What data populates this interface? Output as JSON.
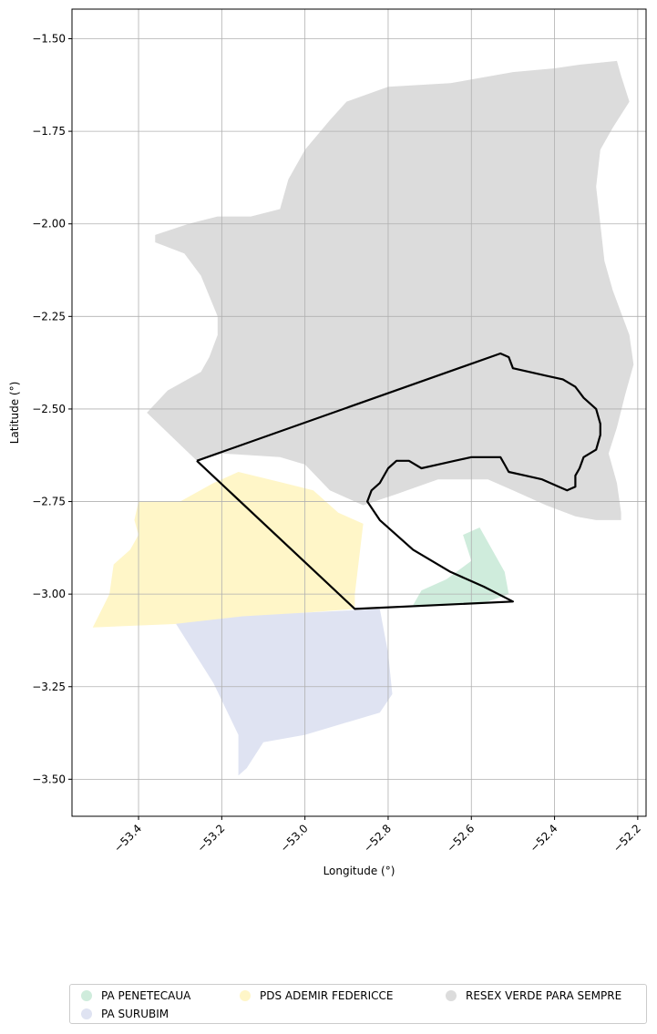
{
  "chart_data": {
    "type": "map",
    "xlabel": "Longitude (°)",
    "ylabel": "Latitude (°)",
    "xlim": [
      -53.56,
      -52.18
    ],
    "ylim": [
      -3.6,
      -1.42
    ],
    "xticks": [
      -53.4,
      -53.2,
      -53.0,
      -52.8,
      -52.6,
      -52.4,
      -52.2
    ],
    "xtick_labels": [
      "−53.4",
      "−53.2",
      "−53.0",
      "−52.8",
      "−52.6",
      "−52.4",
      "−52.2"
    ],
    "yticks": [
      -1.5,
      -1.75,
      -2.0,
      -2.25,
      -2.5,
      -2.75,
      -3.0,
      -3.25,
      -3.5
    ],
    "ytick_labels": [
      "−1.50",
      "−1.75",
      "−2.00",
      "−2.25",
      "−2.50",
      "−2.75",
      "−3.00",
      "−3.25",
      "−3.50"
    ],
    "grid": true,
    "legend_position": "bottom",
    "regions": [
      {
        "name": "RESEX VERDE PARA SEMPRE",
        "color": "#dcdcdc",
        "polygon": [
          [
            -53.38,
            -2.51
          ],
          [
            -53.33,
            -2.45
          ],
          [
            -53.25,
            -2.4
          ],
          [
            -53.23,
            -2.36
          ],
          [
            -53.21,
            -2.3
          ],
          [
            -53.21,
            -2.25
          ],
          [
            -53.25,
            -2.14
          ],
          [
            -53.29,
            -2.08
          ],
          [
            -53.36,
            -2.05
          ],
          [
            -53.36,
            -2.03
          ],
          [
            -53.28,
            -2.0
          ],
          [
            -53.21,
            -1.98
          ],
          [
            -53.13,
            -1.98
          ],
          [
            -53.06,
            -1.96
          ],
          [
            -53.04,
            -1.88
          ],
          [
            -53.0,
            -1.8
          ],
          [
            -52.94,
            -1.72
          ],
          [
            -52.9,
            -1.67
          ],
          [
            -52.8,
            -1.63
          ],
          [
            -52.65,
            -1.62
          ],
          [
            -52.5,
            -1.59
          ],
          [
            -52.4,
            -1.58
          ],
          [
            -52.34,
            -1.57
          ],
          [
            -52.25,
            -1.56
          ],
          [
            -52.24,
            -1.6
          ],
          [
            -52.22,
            -1.67
          ],
          [
            -52.26,
            -1.74
          ],
          [
            -52.29,
            -1.8
          ],
          [
            -52.3,
            -1.9
          ],
          [
            -52.29,
            -2.0
          ],
          [
            -52.28,
            -2.1
          ],
          [
            -52.26,
            -2.18
          ],
          [
            -52.22,
            -2.3
          ],
          [
            -52.21,
            -2.38
          ],
          [
            -52.23,
            -2.46
          ],
          [
            -52.25,
            -2.55
          ],
          [
            -52.27,
            -2.62
          ],
          [
            -52.25,
            -2.7
          ],
          [
            -52.24,
            -2.78
          ],
          [
            -52.24,
            -2.8
          ],
          [
            -52.3,
            -2.8
          ],
          [
            -52.35,
            -2.79
          ],
          [
            -52.42,
            -2.76
          ],
          [
            -52.5,
            -2.72
          ],
          [
            -52.56,
            -2.69
          ],
          [
            -52.68,
            -2.69
          ],
          [
            -52.78,
            -2.73
          ],
          [
            -52.86,
            -2.76
          ],
          [
            -52.94,
            -2.72
          ],
          [
            -53.0,
            -2.65
          ],
          [
            -53.06,
            -2.63
          ],
          [
            -53.2,
            -2.62
          ],
          [
            -53.26,
            -2.64
          ]
        ]
      },
      {
        "name": "PDS ADEMIR FEDERICCE",
        "color": "#fff6c8",
        "polygon": [
          [
            -53.51,
            -3.09
          ],
          [
            -53.47,
            -3.0
          ],
          [
            -53.46,
            -2.92
          ],
          [
            -53.42,
            -2.88
          ],
          [
            -53.4,
            -2.84
          ],
          [
            -53.41,
            -2.8
          ],
          [
            -53.4,
            -2.75
          ],
          [
            -53.3,
            -2.75
          ],
          [
            -53.22,
            -2.7
          ],
          [
            -53.16,
            -2.67
          ],
          [
            -53.05,
            -2.7
          ],
          [
            -52.98,
            -2.72
          ],
          [
            -52.92,
            -2.78
          ],
          [
            -52.86,
            -2.81
          ],
          [
            -52.88,
            -3.0
          ],
          [
            -52.88,
            -3.04
          ],
          [
            -53.0,
            -3.05
          ],
          [
            -53.12,
            -3.06
          ],
          [
            -53.3,
            -3.08
          ]
        ]
      },
      {
        "name": "PA SURUBIM",
        "color": "#dfe3f2",
        "polygon": [
          [
            -53.31,
            -3.08
          ],
          [
            -53.22,
            -3.24
          ],
          [
            -53.16,
            -3.38
          ],
          [
            -53.16,
            -3.49
          ],
          [
            -53.14,
            -3.47
          ],
          [
            -53.1,
            -3.4
          ],
          [
            -53.0,
            -3.38
          ],
          [
            -52.94,
            -3.36
          ],
          [
            -52.82,
            -3.32
          ],
          [
            -52.79,
            -3.27
          ],
          [
            -52.8,
            -3.16
          ],
          [
            -52.82,
            -3.04
          ],
          [
            -53.0,
            -3.05
          ],
          [
            -53.15,
            -3.06
          ]
        ]
      },
      {
        "name": "PA PENETECAUA",
        "color": "#cfecdc",
        "polygon": [
          [
            -52.74,
            -3.03
          ],
          [
            -52.72,
            -2.99
          ],
          [
            -52.66,
            -2.96
          ],
          [
            -52.6,
            -2.91
          ],
          [
            -52.62,
            -2.84
          ],
          [
            -52.58,
            -2.82
          ],
          [
            -52.55,
            -2.88
          ],
          [
            -52.52,
            -2.94
          ],
          [
            -52.51,
            -3.0
          ],
          [
            -52.56,
            -3.02
          ],
          [
            -52.66,
            -3.03
          ]
        ]
      }
    ],
    "boundary": {
      "color": "#000000",
      "polyline": [
        [
          -53.26,
          -2.64
        ],
        [
          -52.53,
          -2.35
        ],
        [
          -52.51,
          -2.36
        ],
        [
          -52.5,
          -2.39
        ],
        [
          -52.46,
          -2.4
        ],
        [
          -52.42,
          -2.41
        ],
        [
          -52.38,
          -2.42
        ],
        [
          -52.35,
          -2.44
        ],
        [
          -52.33,
          -2.47
        ],
        [
          -52.3,
          -2.5
        ],
        [
          -52.29,
          -2.54
        ],
        [
          -52.29,
          -2.57
        ],
        [
          -52.3,
          -2.61
        ],
        [
          -52.33,
          -2.63
        ],
        [
          -52.34,
          -2.66
        ],
        [
          -52.35,
          -2.68
        ],
        [
          -52.35,
          -2.71
        ],
        [
          -52.37,
          -2.72
        ],
        [
          -52.39,
          -2.71
        ],
        [
          -52.43,
          -2.69
        ],
        [
          -52.47,
          -2.68
        ],
        [
          -52.51,
          -2.67
        ],
        [
          -52.52,
          -2.65
        ],
        [
          -52.53,
          -2.63
        ],
        [
          -52.56,
          -2.63
        ],
        [
          -52.6,
          -2.63
        ],
        [
          -52.64,
          -2.64
        ],
        [
          -52.68,
          -2.65
        ],
        [
          -52.72,
          -2.66
        ],
        [
          -52.75,
          -2.64
        ],
        [
          -52.78,
          -2.64
        ],
        [
          -52.8,
          -2.66
        ],
        [
          -52.82,
          -2.7
        ],
        [
          -52.84,
          -2.72
        ],
        [
          -52.85,
          -2.75
        ],
        [
          -52.82,
          -2.8
        ],
        [
          -52.74,
          -2.88
        ],
        [
          -52.65,
          -2.94
        ],
        [
          -52.57,
          -2.98
        ],
        [
          -52.5,
          -3.02
        ],
        [
          -52.88,
          -3.04
        ],
        [
          -53.26,
          -2.64
        ]
      ]
    }
  },
  "legend": {
    "items": [
      {
        "label": "PA PENETECAUA",
        "color": "#cfecdc"
      },
      {
        "label": "PDS ADEMIR FEDERICCE",
        "color": "#fff6c8"
      },
      {
        "label": "RESEX VERDE PARA SEMPRE",
        "color": "#dcdcdc"
      },
      {
        "label": "PA SURUBIM",
        "color": "#dfe3f2"
      }
    ]
  }
}
